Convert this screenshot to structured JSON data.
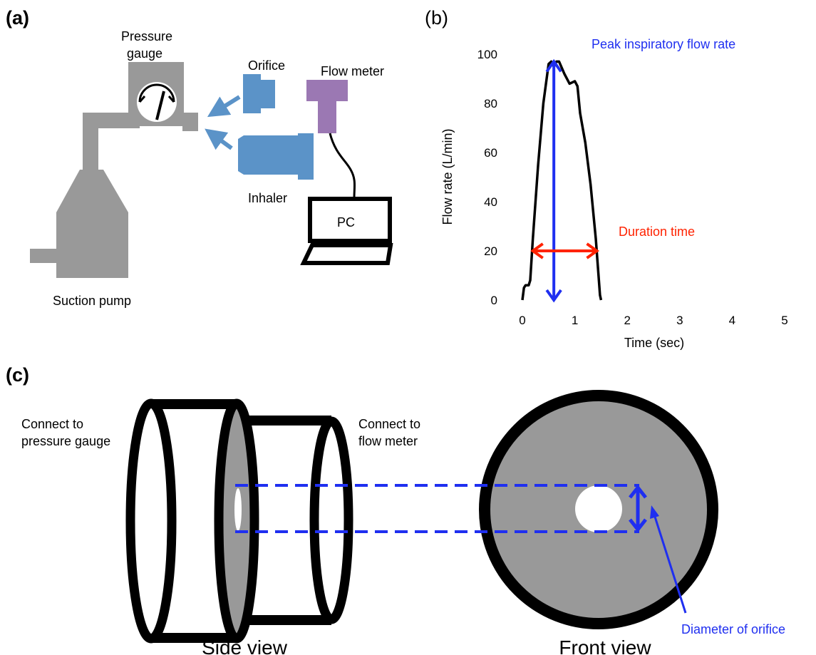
{
  "panels": {
    "a": {
      "letter": "(a)",
      "labels": {
        "pressure_gauge_line1": "Pressure",
        "pressure_gauge_line2": "gauge",
        "orifice": "Orifice",
        "flow_meter": "Flow meter",
        "inhaler": "Inhaler",
        "pc": "PC",
        "suction_pump": "Suction pump"
      }
    },
    "b": {
      "letter": "(b)",
      "annotations": {
        "peak": "Peak inspiratory flow rate",
        "duration": "Duration time"
      }
    },
    "c": {
      "letter": "(c)",
      "labels": {
        "connect_gauge_line1": "Connect to",
        "connect_gauge_line2": "pressure gauge",
        "connect_meter_line1": "Connect to",
        "connect_meter_line2": "flow meter",
        "side_view": "Side view",
        "front_view": "Front view",
        "diameter": "Diameter of orifice"
      }
    }
  },
  "colors": {
    "device_gray": "#999999",
    "orifice_blue": "#5b93c8",
    "flow_meter_purple": "#9b78b3",
    "annotation_blue": "#1f2ff0",
    "annotation_red": "#ff2200",
    "disc_gray": "#999999"
  },
  "chart_data": {
    "type": "line",
    "xlabel": "Time (sec)",
    "ylabel": "Flow rate (L/min)",
    "xlim": [
      0,
      5
    ],
    "ylim": [
      0,
      100
    ],
    "x_ticks": [
      0,
      1,
      2,
      3,
      4,
      5
    ],
    "y_ticks": [
      0,
      20,
      40,
      60,
      80,
      100
    ],
    "grid": false,
    "series": [
      {
        "x": [
          0,
          0.03,
          0.06,
          0.12,
          0.15,
          0.2,
          0.3,
          0.4,
          0.5,
          0.55,
          0.6,
          0.65,
          0.7,
          0.8,
          0.9,
          1.0,
          1.05,
          1.1,
          1.2,
          1.3,
          1.4,
          1.48,
          1.5
        ],
        "y": [
          0,
          5,
          6,
          6,
          8,
          25,
          55,
          80,
          96,
          97,
          95,
          97,
          97,
          92,
          88,
          89,
          87,
          76,
          64,
          47,
          25,
          2,
          0
        ]
      }
    ],
    "annotations": [
      {
        "label": "Peak inspiratory flow rate",
        "type": "vertical-double-arrow",
        "x": 0.6,
        "y_from": 0,
        "y_to": 97
      },
      {
        "label": "Duration time",
        "type": "horizontal-double-arrow",
        "y": 20,
        "x_from": 0.2,
        "x_to": 1.42
      }
    ]
  }
}
